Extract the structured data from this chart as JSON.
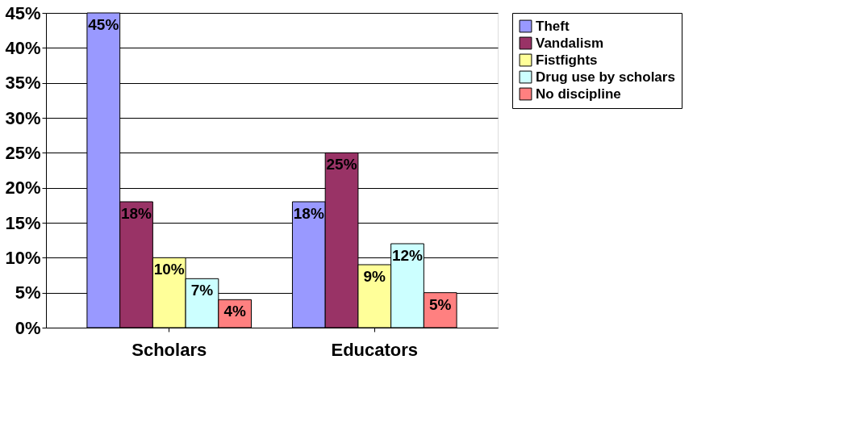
{
  "chart_data": {
    "type": "bar",
    "categories": [
      "Scholars",
      "Educators"
    ],
    "series": [
      {
        "name": "Theft",
        "color": "#9999ff",
        "values": [
          45,
          18
        ],
        "value_labels": [
          "45%",
          "18%"
        ]
      },
      {
        "name": "Vandalism",
        "color": "#993366",
        "values": [
          18,
          25
        ],
        "value_labels": [
          "18%",
          "25%"
        ]
      },
      {
        "name": "Fistfights",
        "color": "#ffff99",
        "values": [
          10,
          9
        ],
        "value_labels": [
          "10%",
          "9%"
        ]
      },
      {
        "name": "Drug use by scholars",
        "color": "#ccffff",
        "values": [
          7,
          12
        ],
        "value_labels": [
          "7%",
          "12%"
        ]
      },
      {
        "name": "No discipline",
        "color": "#ff8080",
        "values": [
          4,
          5
        ],
        "value_labels": [
          "4%",
          "5%"
        ]
      }
    ],
    "ylim": [
      0,
      45
    ],
    "yticks": [
      {
        "value": 0,
        "label": "0%"
      },
      {
        "value": 5,
        "label": "5%"
      },
      {
        "value": 10,
        "label": "10%"
      },
      {
        "value": 15,
        "label": "15%"
      },
      {
        "value": 20,
        "label": "20%"
      },
      {
        "value": 25,
        "label": "25%"
      },
      {
        "value": 30,
        "label": "30%"
      },
      {
        "value": 35,
        "label": "35%"
      },
      {
        "value": 40,
        "label": "40%"
      },
      {
        "value": 45,
        "label": "45%"
      }
    ],
    "grid": "y",
    "legend": "right"
  }
}
